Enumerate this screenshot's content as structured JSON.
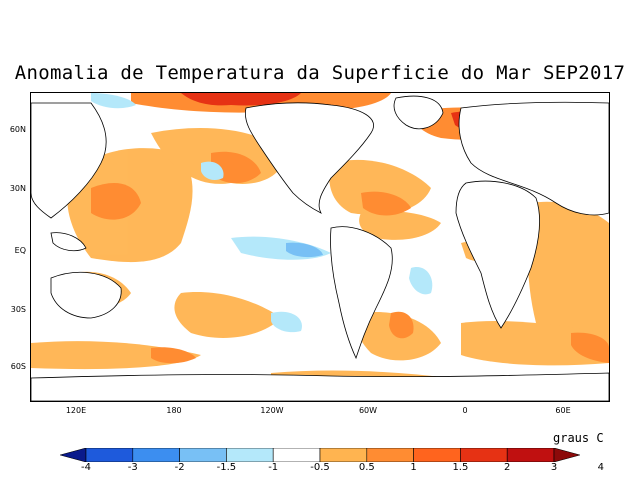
{
  "title": "Anomalia de Temperatura da Superficie do Mar SEP2017",
  "units_label": "graus C",
  "latitude_labels": [
    "60N",
    "30N",
    "EQ",
    "30S",
    "60S"
  ],
  "longitude_labels": [
    "120E",
    "180",
    "120W",
    "60W",
    "0",
    "60E"
  ],
  "colorbar": {
    "tick_labels": [
      "-4",
      "-3",
      "-2",
      "-1.5",
      "-1",
      "-0.5",
      "0.5",
      "1",
      "1.5",
      "2",
      "3",
      "4"
    ],
    "colors": [
      "#0a1a8c",
      "#1e5adc",
      "#3c8ef0",
      "#78c0f5",
      "#b4e8fa",
      "#ffffff",
      "#ffb450",
      "#ff8c32",
      "#ff641e",
      "#e63214",
      "#c01010",
      "#8c0a0a"
    ]
  }
}
